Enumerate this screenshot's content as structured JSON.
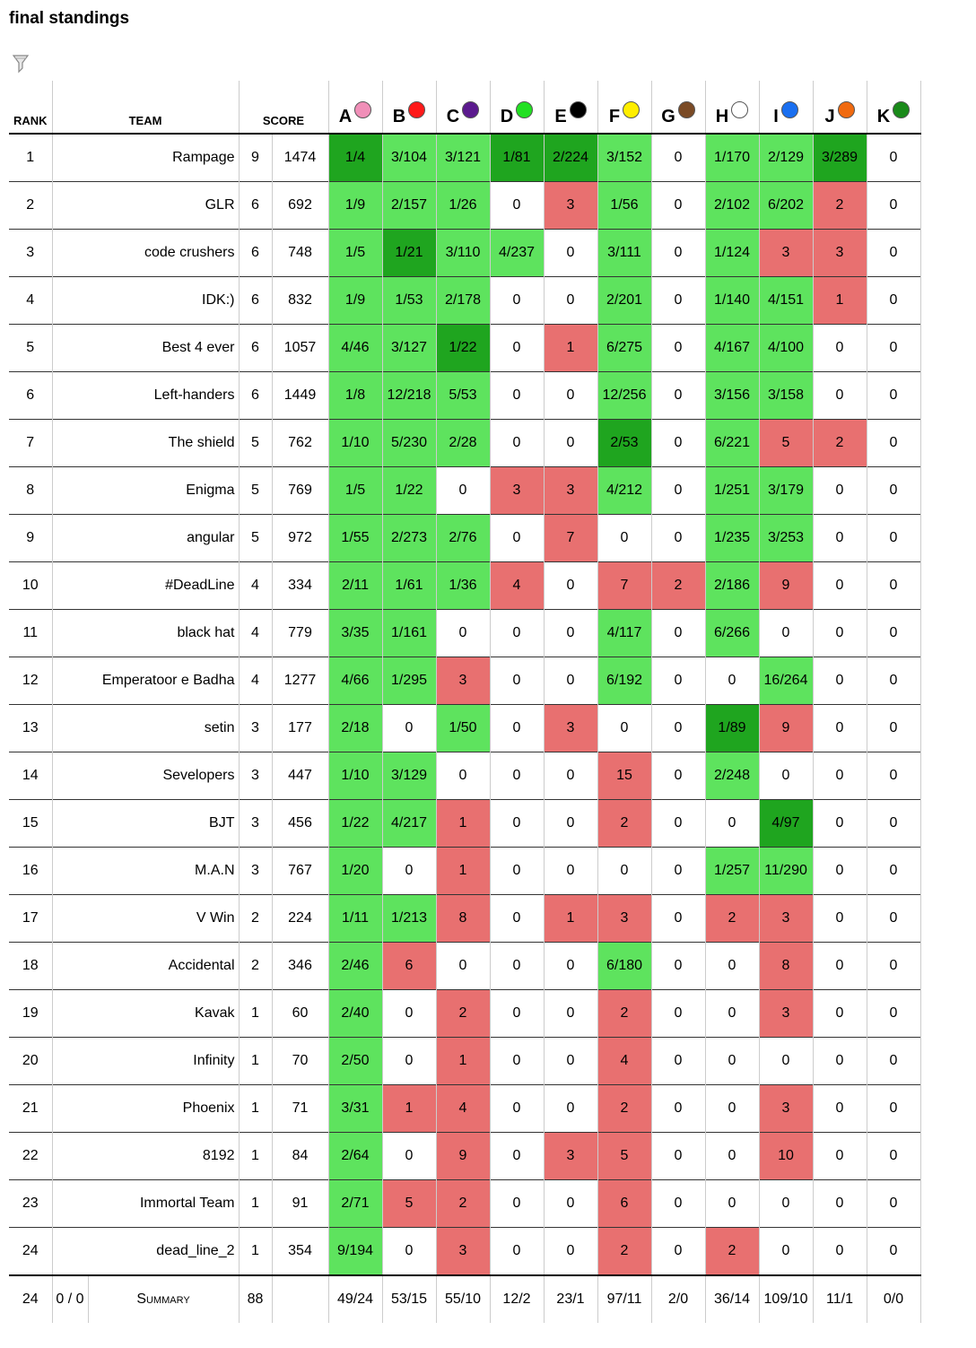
{
  "page": {
    "title": "final standings"
  },
  "columns": {
    "rank": "RANK",
    "team": "TEAM",
    "score": "SCORE"
  },
  "colors": {
    "first_solve": "#1fa51f",
    "solved": "#5ee35e",
    "attempted": "#e87070",
    "none": "#ffffff"
  },
  "problems": [
    {
      "letter": "A",
      "balloon_color": "#f08fb8"
    },
    {
      "letter": "B",
      "balloon_color": "#ff1a1a"
    },
    {
      "letter": "C",
      "balloon_color": "#5b1a8e"
    },
    {
      "letter": "D",
      "balloon_color": "#22e022"
    },
    {
      "letter": "E",
      "balloon_color": "#000000"
    },
    {
      "letter": "F",
      "balloon_color": "#ffee00"
    },
    {
      "letter": "G",
      "balloon_color": "#7a4a25"
    },
    {
      "letter": "H",
      "balloon_color": "#ffffff"
    },
    {
      "letter": "I",
      "balloon_color": "#1a6ff0"
    },
    {
      "letter": "J",
      "balloon_color": "#f06a10"
    },
    {
      "letter": "K",
      "balloon_color": "#1a8a1a"
    }
  ],
  "rows": [
    {
      "rank": "1",
      "team": "Rampage",
      "solved": "9",
      "penalty": "1474",
      "cells": [
        [
          "1/4",
          "first"
        ],
        [
          "3/104",
          "ok"
        ],
        [
          "3/121",
          "ok"
        ],
        [
          "1/81",
          "first"
        ],
        [
          "2/224",
          "first"
        ],
        [
          "3/152",
          "ok"
        ],
        [
          "0",
          "none"
        ],
        [
          "1/170",
          "ok"
        ],
        [
          "2/129",
          "ok"
        ],
        [
          "3/289",
          "first"
        ],
        [
          "0",
          "none"
        ]
      ]
    },
    {
      "rank": "2",
      "team": "GLR",
      "solved": "6",
      "penalty": "692",
      "cells": [
        [
          "1/9",
          "ok"
        ],
        [
          "2/157",
          "ok"
        ],
        [
          "1/26",
          "ok"
        ],
        [
          "0",
          "none"
        ],
        [
          "3",
          "bad"
        ],
        [
          "1/56",
          "ok"
        ],
        [
          "0",
          "none"
        ],
        [
          "2/102",
          "ok"
        ],
        [
          "6/202",
          "ok"
        ],
        [
          "2",
          "bad"
        ],
        [
          "0",
          "none"
        ]
      ]
    },
    {
      "rank": "3",
      "team": "code crushers",
      "solved": "6",
      "penalty": "748",
      "cells": [
        [
          "1/5",
          "ok"
        ],
        [
          "1/21",
          "first"
        ],
        [
          "3/110",
          "ok"
        ],
        [
          "4/237",
          "ok"
        ],
        [
          "0",
          "none"
        ],
        [
          "3/111",
          "ok"
        ],
        [
          "0",
          "none"
        ],
        [
          "1/124",
          "ok"
        ],
        [
          "3",
          "bad"
        ],
        [
          "3",
          "bad"
        ],
        [
          "0",
          "none"
        ]
      ]
    },
    {
      "rank": "4",
      "team": "IDK:)",
      "solved": "6",
      "penalty": "832",
      "cells": [
        [
          "1/9",
          "ok"
        ],
        [
          "1/53",
          "ok"
        ],
        [
          "2/178",
          "ok"
        ],
        [
          "0",
          "none"
        ],
        [
          "0",
          "none"
        ],
        [
          "2/201",
          "ok"
        ],
        [
          "0",
          "none"
        ],
        [
          "1/140",
          "ok"
        ],
        [
          "4/151",
          "ok"
        ],
        [
          "1",
          "bad"
        ],
        [
          "0",
          "none"
        ]
      ]
    },
    {
      "rank": "5",
      "team": "Best 4 ever",
      "solved": "6",
      "penalty": "1057",
      "cells": [
        [
          "4/46",
          "ok"
        ],
        [
          "3/127",
          "ok"
        ],
        [
          "1/22",
          "first"
        ],
        [
          "0",
          "none"
        ],
        [
          "1",
          "bad"
        ],
        [
          "6/275",
          "ok"
        ],
        [
          "0",
          "none"
        ],
        [
          "4/167",
          "ok"
        ],
        [
          "4/100",
          "ok"
        ],
        [
          "0",
          "none"
        ],
        [
          "0",
          "none"
        ]
      ]
    },
    {
      "rank": "6",
      "team": "Left-handers",
      "solved": "6",
      "penalty": "1449",
      "cells": [
        [
          "1/8",
          "ok"
        ],
        [
          "12/218",
          "ok"
        ],
        [
          "5/53",
          "ok"
        ],
        [
          "0",
          "none"
        ],
        [
          "0",
          "none"
        ],
        [
          "12/256",
          "ok"
        ],
        [
          "0",
          "none"
        ],
        [
          "3/156",
          "ok"
        ],
        [
          "3/158",
          "ok"
        ],
        [
          "0",
          "none"
        ],
        [
          "0",
          "none"
        ]
      ]
    },
    {
      "rank": "7",
      "team": "The shield",
      "solved": "5",
      "penalty": "762",
      "cells": [
        [
          "1/10",
          "ok"
        ],
        [
          "5/230",
          "ok"
        ],
        [
          "2/28",
          "ok"
        ],
        [
          "0",
          "none"
        ],
        [
          "0",
          "none"
        ],
        [
          "2/53",
          "first"
        ],
        [
          "0",
          "none"
        ],
        [
          "6/221",
          "ok"
        ],
        [
          "5",
          "bad"
        ],
        [
          "2",
          "bad"
        ],
        [
          "0",
          "none"
        ]
      ]
    },
    {
      "rank": "8",
      "team": "Enigma",
      "solved": "5",
      "penalty": "769",
      "cells": [
        [
          "1/5",
          "ok"
        ],
        [
          "1/22",
          "ok"
        ],
        [
          "0",
          "none"
        ],
        [
          "3",
          "bad"
        ],
        [
          "3",
          "bad"
        ],
        [
          "4/212",
          "ok"
        ],
        [
          "0",
          "none"
        ],
        [
          "1/251",
          "ok"
        ],
        [
          "3/179",
          "ok"
        ],
        [
          "0",
          "none"
        ],
        [
          "0",
          "none"
        ]
      ]
    },
    {
      "rank": "9",
      "team": "angular",
      "solved": "5",
      "penalty": "972",
      "cells": [
        [
          "1/55",
          "ok"
        ],
        [
          "2/273",
          "ok"
        ],
        [
          "2/76",
          "ok"
        ],
        [
          "0",
          "none"
        ],
        [
          "7",
          "bad"
        ],
        [
          "0",
          "none"
        ],
        [
          "0",
          "none"
        ],
        [
          "1/235",
          "ok"
        ],
        [
          "3/253",
          "ok"
        ],
        [
          "0",
          "none"
        ],
        [
          "0",
          "none"
        ]
      ]
    },
    {
      "rank": "10",
      "team": "#DeadLine",
      "solved": "4",
      "penalty": "334",
      "cells": [
        [
          "2/11",
          "ok"
        ],
        [
          "1/61",
          "ok"
        ],
        [
          "1/36",
          "ok"
        ],
        [
          "4",
          "bad"
        ],
        [
          "0",
          "none"
        ],
        [
          "7",
          "bad"
        ],
        [
          "2",
          "bad"
        ],
        [
          "2/186",
          "ok"
        ],
        [
          "9",
          "bad"
        ],
        [
          "0",
          "none"
        ],
        [
          "0",
          "none"
        ]
      ]
    },
    {
      "rank": "11",
      "team": "black hat",
      "solved": "4",
      "penalty": "779",
      "cells": [
        [
          "3/35",
          "ok"
        ],
        [
          "1/161",
          "ok"
        ],
        [
          "0",
          "none"
        ],
        [
          "0",
          "none"
        ],
        [
          "0",
          "none"
        ],
        [
          "4/117",
          "ok"
        ],
        [
          "0",
          "none"
        ],
        [
          "6/266",
          "ok"
        ],
        [
          "0",
          "none"
        ],
        [
          "0",
          "none"
        ],
        [
          "0",
          "none"
        ]
      ]
    },
    {
      "rank": "12",
      "team": "Emperatoor e Badha",
      "solved": "4",
      "penalty": "1277",
      "cells": [
        [
          "4/66",
          "ok"
        ],
        [
          "1/295",
          "ok"
        ],
        [
          "3",
          "bad"
        ],
        [
          "0",
          "none"
        ],
        [
          "0",
          "none"
        ],
        [
          "6/192",
          "ok"
        ],
        [
          "0",
          "none"
        ],
        [
          "0",
          "none"
        ],
        [
          "16/264",
          "ok"
        ],
        [
          "0",
          "none"
        ],
        [
          "0",
          "none"
        ]
      ]
    },
    {
      "rank": "13",
      "team": "setin",
      "solved": "3",
      "penalty": "177",
      "cells": [
        [
          "2/18",
          "ok"
        ],
        [
          "0",
          "none"
        ],
        [
          "1/50",
          "ok"
        ],
        [
          "0",
          "none"
        ],
        [
          "3",
          "bad"
        ],
        [
          "0",
          "none"
        ],
        [
          "0",
          "none"
        ],
        [
          "1/89",
          "first"
        ],
        [
          "9",
          "bad"
        ],
        [
          "0",
          "none"
        ],
        [
          "0",
          "none"
        ]
      ]
    },
    {
      "rank": "14",
      "team": "Sevelopers",
      "solved": "3",
      "penalty": "447",
      "cells": [
        [
          "1/10",
          "ok"
        ],
        [
          "3/129",
          "ok"
        ],
        [
          "0",
          "none"
        ],
        [
          "0",
          "none"
        ],
        [
          "0",
          "none"
        ],
        [
          "15",
          "bad"
        ],
        [
          "0",
          "none"
        ],
        [
          "2/248",
          "ok"
        ],
        [
          "0",
          "none"
        ],
        [
          "0",
          "none"
        ],
        [
          "0",
          "none"
        ]
      ]
    },
    {
      "rank": "15",
      "team": "BJT",
      "solved": "3",
      "penalty": "456",
      "cells": [
        [
          "1/22",
          "ok"
        ],
        [
          "4/217",
          "ok"
        ],
        [
          "1",
          "bad"
        ],
        [
          "0",
          "none"
        ],
        [
          "0",
          "none"
        ],
        [
          "2",
          "bad"
        ],
        [
          "0",
          "none"
        ],
        [
          "0",
          "none"
        ],
        [
          "4/97",
          "first"
        ],
        [
          "0",
          "none"
        ],
        [
          "0",
          "none"
        ]
      ]
    },
    {
      "rank": "16",
      "team": "M.A.N",
      "solved": "3",
      "penalty": "767",
      "cells": [
        [
          "1/20",
          "ok"
        ],
        [
          "0",
          "none"
        ],
        [
          "1",
          "bad"
        ],
        [
          "0",
          "none"
        ],
        [
          "0",
          "none"
        ],
        [
          "0",
          "none"
        ],
        [
          "0",
          "none"
        ],
        [
          "1/257",
          "ok"
        ],
        [
          "11/290",
          "ok"
        ],
        [
          "0",
          "none"
        ],
        [
          "0",
          "none"
        ]
      ]
    },
    {
      "rank": "17",
      "team": "V Win",
      "solved": "2",
      "penalty": "224",
      "cells": [
        [
          "1/11",
          "ok"
        ],
        [
          "1/213",
          "ok"
        ],
        [
          "8",
          "bad"
        ],
        [
          "0",
          "none"
        ],
        [
          "1",
          "bad"
        ],
        [
          "3",
          "bad"
        ],
        [
          "0",
          "none"
        ],
        [
          "2",
          "bad"
        ],
        [
          "3",
          "bad"
        ],
        [
          "0",
          "none"
        ],
        [
          "0",
          "none"
        ]
      ]
    },
    {
      "rank": "18",
      "team": "Accidental",
      "solved": "2",
      "penalty": "346",
      "cells": [
        [
          "2/46",
          "ok"
        ],
        [
          "6",
          "bad"
        ],
        [
          "0",
          "none"
        ],
        [
          "0",
          "none"
        ],
        [
          "0",
          "none"
        ],
        [
          "6/180",
          "ok"
        ],
        [
          "0",
          "none"
        ],
        [
          "0",
          "none"
        ],
        [
          "8",
          "bad"
        ],
        [
          "0",
          "none"
        ],
        [
          "0",
          "none"
        ]
      ]
    },
    {
      "rank": "19",
      "team": "Kavak",
      "solved": "1",
      "penalty": "60",
      "cells": [
        [
          "2/40",
          "ok"
        ],
        [
          "0",
          "none"
        ],
        [
          "2",
          "bad"
        ],
        [
          "0",
          "none"
        ],
        [
          "0",
          "none"
        ],
        [
          "2",
          "bad"
        ],
        [
          "0",
          "none"
        ],
        [
          "0",
          "none"
        ],
        [
          "3",
          "bad"
        ],
        [
          "0",
          "none"
        ],
        [
          "0",
          "none"
        ]
      ]
    },
    {
      "rank": "20",
      "team": "Infinity",
      "solved": "1",
      "penalty": "70",
      "cells": [
        [
          "2/50",
          "ok"
        ],
        [
          "0",
          "none"
        ],
        [
          "1",
          "bad"
        ],
        [
          "0",
          "none"
        ],
        [
          "0",
          "none"
        ],
        [
          "4",
          "bad"
        ],
        [
          "0",
          "none"
        ],
        [
          "0",
          "none"
        ],
        [
          "0",
          "none"
        ],
        [
          "0",
          "none"
        ],
        [
          "0",
          "none"
        ]
      ]
    },
    {
      "rank": "21",
      "team": "Phoenix",
      "solved": "1",
      "penalty": "71",
      "cells": [
        [
          "3/31",
          "ok"
        ],
        [
          "1",
          "bad"
        ],
        [
          "4",
          "bad"
        ],
        [
          "0",
          "none"
        ],
        [
          "0",
          "none"
        ],
        [
          "2",
          "bad"
        ],
        [
          "0",
          "none"
        ],
        [
          "0",
          "none"
        ],
        [
          "3",
          "bad"
        ],
        [
          "0",
          "none"
        ],
        [
          "0",
          "none"
        ]
      ]
    },
    {
      "rank": "22",
      "team": "8192",
      "solved": "1",
      "penalty": "84",
      "cells": [
        [
          "2/64",
          "ok"
        ],
        [
          "0",
          "none"
        ],
        [
          "9",
          "bad"
        ],
        [
          "0",
          "none"
        ],
        [
          "3",
          "bad"
        ],
        [
          "5",
          "bad"
        ],
        [
          "0",
          "none"
        ],
        [
          "0",
          "none"
        ],
        [
          "10",
          "bad"
        ],
        [
          "0",
          "none"
        ],
        [
          "0",
          "none"
        ]
      ]
    },
    {
      "rank": "23",
      "team": "Immortal Team",
      "solved": "1",
      "penalty": "91",
      "cells": [
        [
          "2/71",
          "ok"
        ],
        [
          "5",
          "bad"
        ],
        [
          "2",
          "bad"
        ],
        [
          "0",
          "none"
        ],
        [
          "0",
          "none"
        ],
        [
          "6",
          "bad"
        ],
        [
          "0",
          "none"
        ],
        [
          "0",
          "none"
        ],
        [
          "0",
          "none"
        ],
        [
          "0",
          "none"
        ],
        [
          "0",
          "none"
        ]
      ]
    },
    {
      "rank": "24",
      "team": "dead_line_2",
      "solved": "1",
      "penalty": "354",
      "cells": [
        [
          "9/194",
          "ok"
        ],
        [
          "0",
          "none"
        ],
        [
          "3",
          "bad"
        ],
        [
          "0",
          "none"
        ],
        [
          "0",
          "none"
        ],
        [
          "2",
          "bad"
        ],
        [
          "0",
          "none"
        ],
        [
          "2",
          "bad"
        ],
        [
          "0",
          "none"
        ],
        [
          "0",
          "none"
        ],
        [
          "0",
          "none"
        ]
      ]
    }
  ],
  "summary": {
    "teams": "24",
    "ratio": "0 / 0",
    "label": "Summary",
    "total_solved": "88",
    "problems": [
      "49/24",
      "53/15",
      "55/10",
      "12/2",
      "23/1",
      "97/11",
      "2/0",
      "36/14",
      "109/10",
      "11/1",
      "0/0"
    ]
  }
}
